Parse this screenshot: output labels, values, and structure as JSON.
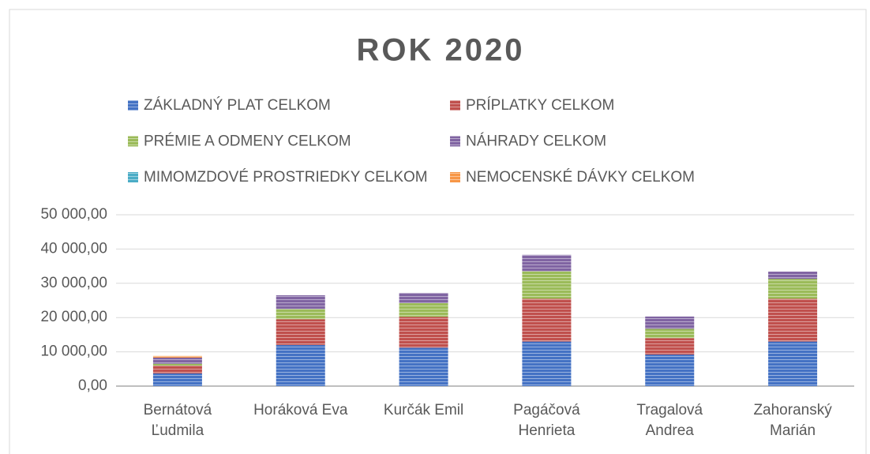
{
  "chart_data": {
    "type": "stacked_bar",
    "title": "ROK 2020",
    "categories": [
      "Bernátová Ľudmila",
      "Horáková Eva",
      "Kurčák Emil",
      "Pagáčová Henrieta",
      "Tragalová Andrea",
      "Zahoranský Marián"
    ],
    "series": [
      {
        "name": "ZÁKLADNÝ PLAT CELKOM",
        "color": "#4472c4",
        "values": [
          3700,
          12000,
          11200,
          13000,
          9200,
          13000
        ]
      },
      {
        "name": "PRÍPLATKY CELKOM",
        "color": "#c0504d",
        "values": [
          2300,
          7500,
          9000,
          12500,
          4800,
          12500
        ]
      },
      {
        "name": "PRÉMIE A ODMENY CELKOM",
        "color": "#9bbb59",
        "values": [
          500,
          3000,
          4000,
          8000,
          2700,
          5800
        ]
      },
      {
        "name": "NÁHRADY CELKOM",
        "color": "#8064a2",
        "values": [
          1800,
          4000,
          3000,
          4800,
          3600,
          2100
        ]
      },
      {
        "name": "MIMOMZDOVÉ PROSTRIEDKY CELKOM",
        "color": "#4bacc6",
        "values": [
          0,
          0,
          0,
          0,
          0,
          0
        ]
      },
      {
        "name": "NEMOCENSKÉ DÁVKY CELKOM",
        "color": "#f79646",
        "values": [
          500,
          0,
          0,
          0,
          0,
          0
        ]
      }
    ],
    "ylim": [
      0,
      50000
    ],
    "yticks": [
      {
        "value": 0,
        "label": "0,00"
      },
      {
        "value": 10000,
        "label": "10 000,00"
      },
      {
        "value": 20000,
        "label": "20 000,00"
      },
      {
        "value": 30000,
        "label": "30 000,00"
      },
      {
        "value": 40000,
        "label": "40 000,00"
      },
      {
        "value": 50000,
        "label": "50 000,00"
      }
    ],
    "grid": true,
    "legend": "top"
  }
}
